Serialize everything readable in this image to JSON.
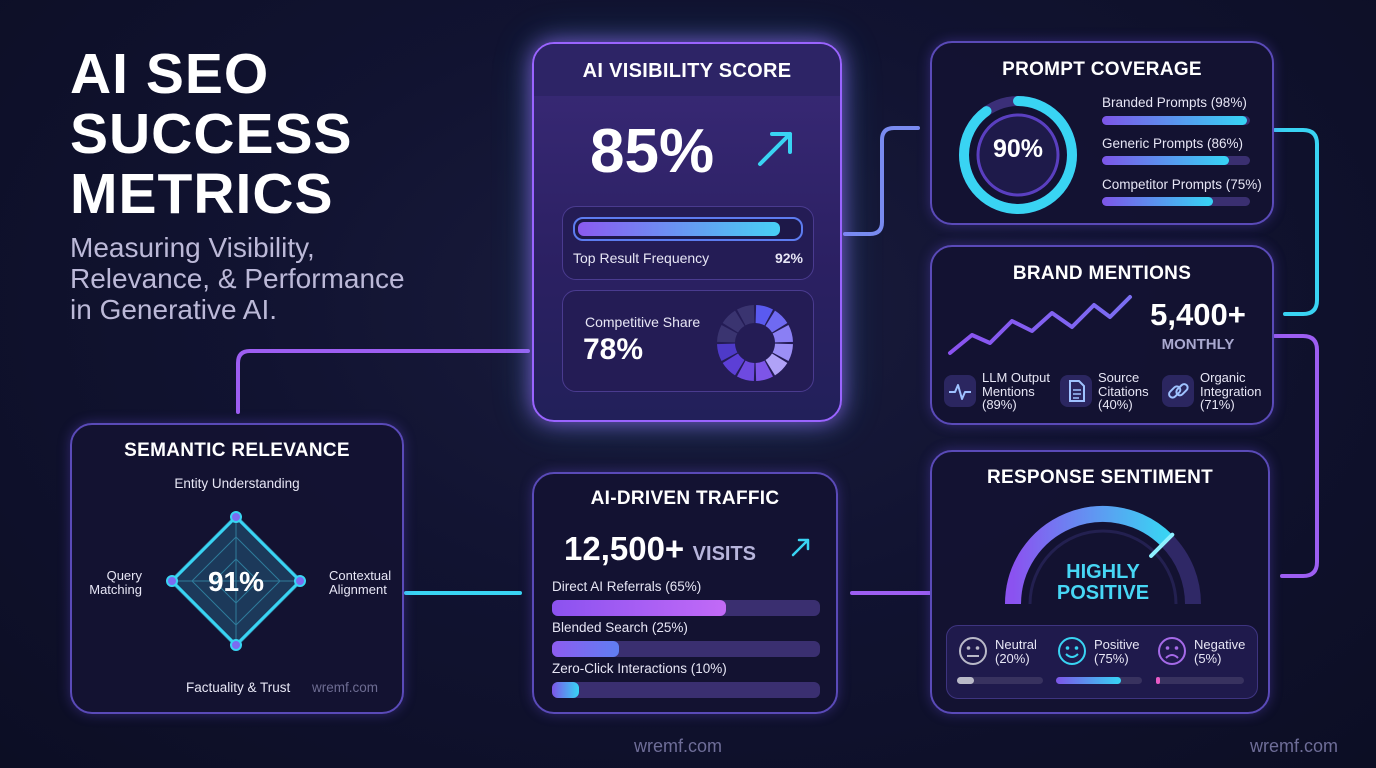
{
  "hero": {
    "title_lines": [
      "AI SEO",
      "SUCCESS",
      "METRICS"
    ],
    "subtitle_lines": [
      "Measuring Visibility,",
      "Relevance, & Performance",
      "in Generative AI."
    ]
  },
  "visibility": {
    "title": "AI VISIBILITY SCORE",
    "score": "85%",
    "top_result_label": "Top Result Frequency",
    "top_result_value": "92%",
    "top_result_level": 0.92,
    "competitive_label": "Competitive Share",
    "competitive_value": "78%",
    "competitive_level": 0.78
  },
  "prompt_coverage": {
    "title": "PROMPT COVERAGE",
    "overall": "90%",
    "overall_level": 0.9,
    "items": [
      {
        "label": "Branded Prompts (98%)",
        "level": 0.98
      },
      {
        "label": "Generic Prompts (86%)",
        "level": 0.86
      },
      {
        "label": "Competitor Prompts (75%)",
        "level": 0.75
      }
    ]
  },
  "brand_mentions": {
    "title": "BRAND MENTIONS",
    "count": "5,400+",
    "period": "MONTHLY",
    "items": [
      {
        "lines": [
          "LLM Output",
          "Mentions",
          "(89%)"
        ],
        "icon": "pulse-icon"
      },
      {
        "lines": [
          "Source",
          "Citations",
          "(40%)"
        ],
        "icon": "document-icon"
      },
      {
        "lines": [
          "Organic",
          "Integration",
          "(71%)"
        ],
        "icon": "link-icon"
      }
    ]
  },
  "semantic": {
    "title": "SEMANTIC RELEVANCE",
    "score": "91%",
    "top": "Entity Understanding",
    "left_lines": [
      "Query",
      "Matching"
    ],
    "right_lines": [
      "Contextual",
      "Alignment"
    ],
    "bottom": "Factuality & Trust",
    "watermark": "wremf.com"
  },
  "traffic": {
    "title": "AI-DRIVEN TRAFFIC",
    "visits": "12,500+",
    "visits_unit": "VISITS",
    "items": [
      {
        "label": "Direct AI Referrals (65%)",
        "level": 0.65
      },
      {
        "label": "Blended Search (25%)",
        "level": 0.25
      },
      {
        "label": "Zero-Click Interactions (10%)",
        "level": 0.1
      }
    ]
  },
  "sentiment": {
    "title": "RESPONSE SENTIMENT",
    "verdict_lines": [
      "HIGHLY",
      "POSITIVE"
    ],
    "gauge_level": 0.75,
    "items": [
      {
        "lines": [
          "Neutral",
          "(20%)"
        ],
        "icon": "neutral-face-icon",
        "level": 0.2
      },
      {
        "lines": [
          "Positive",
          "(75%)"
        ],
        "icon": "smile-face-icon",
        "level": 0.75
      },
      {
        "lines": [
          "Negative",
          "(5%)"
        ],
        "icon": "sad-face-icon",
        "level": 0.05
      }
    ]
  },
  "footer": {
    "watermark_center": "wremf.com",
    "watermark_right": "wremf.com"
  },
  "colors": {
    "background": "#0f1128",
    "accent_purple": "#8b52f0",
    "accent_cyan": "#36d5f5",
    "card_border": "#7a4fd6"
  }
}
